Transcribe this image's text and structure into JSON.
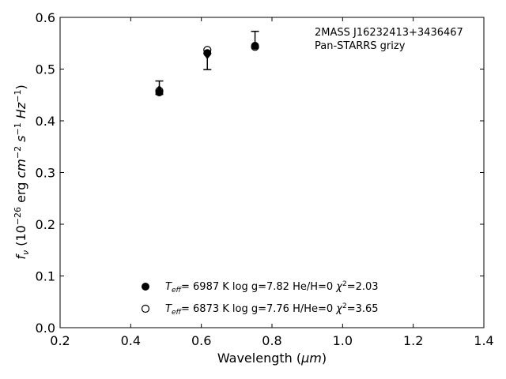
{
  "chart_data": {
    "type": "scatter",
    "xlabel_main": "Wavelength (",
    "xlabel_unit": "μm",
    "xlabel_close": ")",
    "ylabel_f": "f",
    "ylabel_nu": "ν",
    "ylabel_open": " (10",
    "ylabel_exp1": "−26",
    "ylabel_mid": " erg ",
    "ylabel_cm": "cm",
    "ylabel_exp2": "−2",
    "ylabel_s": " s",
    "ylabel_exp3": "−1",
    "ylabel_hz": " Hz",
    "ylabel_exp4": "−1",
    "ylabel_close": ")",
    "xlim": [
      0.2,
      1.4
    ],
    "ylim": [
      0.0,
      0.6
    ],
    "xticks": [
      0.2,
      0.4,
      0.6,
      0.8,
      1.0,
      1.2,
      1.4
    ],
    "xtick_labels": [
      "0.2",
      "0.4",
      "0.6",
      "0.8",
      "1.0",
      "1.2",
      "1.4"
    ],
    "yticks": [
      0.0,
      0.1,
      0.2,
      0.3,
      0.4,
      0.5,
      0.6
    ],
    "ytick_labels": [
      "0.0",
      "0.1",
      "0.2",
      "0.3",
      "0.4",
      "0.5",
      "0.6"
    ],
    "grid": false,
    "annotations": [
      "2MASS J16232413+3436467",
      "Pan-STARRS grizy"
    ],
    "observed": [
      {
        "x": 0.481,
        "y": 0.463,
        "yerr_low": 0.451,
        "yerr_high": 0.477
      },
      {
        "x": 0.617,
        "y": 0.525,
        "yerr_low": 0.499,
        "yerr_high": 0.53
      },
      {
        "x": 0.752,
        "y": 0.547,
        "yerr_low": 0.542,
        "yerr_high": 0.573
      }
    ],
    "series": [
      {
        "name_teff": "T",
        "name_teff_sub": "eff",
        "name_rest_a": "=  6987 K  log g=7.82  He/H=0  ",
        "name_chi": "χ",
        "name_chi_exp": "2",
        "name_chi_val": "=2.03",
        "marker": "filled",
        "x": [
          0.481,
          0.617,
          0.752
        ],
        "y": [
          0.455,
          0.531,
          0.545
        ]
      },
      {
        "name_teff": "T",
        "name_teff_sub": "eff",
        "name_rest_a": "=  6873 K  log g=7.76  H/He=0  ",
        "name_chi": "χ",
        "name_chi_exp": "2",
        "name_chi_val": "=3.65",
        "marker": "open",
        "x": [
          0.481,
          0.617,
          0.752
        ],
        "y": [
          0.458,
          0.537,
          0.543
        ]
      }
    ],
    "legend_position": "bottom-center"
  }
}
